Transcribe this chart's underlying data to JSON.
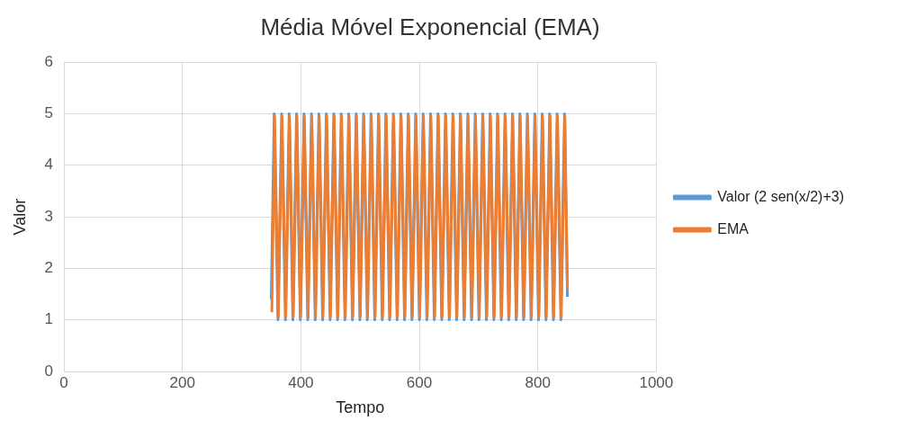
{
  "chart_data": {
    "type": "line",
    "title": "Média Móvel Exponencial (EMA)",
    "xlabel": "Tempo",
    "ylabel": "Valor",
    "xlim": [
      0,
      1000
    ],
    "xticks": [
      0,
      200,
      400,
      600,
      800,
      1000
    ],
    "ylim": [
      0,
      6
    ],
    "yticks": [
      0,
      1,
      2,
      3,
      4,
      5,
      6
    ],
    "grid": true,
    "legend": "right",
    "series": [
      {
        "name": "Valor (2 sen(x/2)+3)",
        "color": "#5b9bd5",
        "x": [
          350,
          355.0,
          361.3,
          367.6,
          373.9,
          380.2,
          386.5,
          392.7,
          399.0,
          405.3,
          411.6,
          417.9,
          424.2,
          430.4,
          436.7,
          443.0,
          449.3,
          455.6,
          461.9,
          468.1,
          474.4,
          480.7,
          487.0,
          493.3,
          499.6,
          505.8,
          512.1,
          518.4,
          524.7,
          531.0,
          537.3,
          543.5,
          549.8,
          556.1,
          562.4,
          568.7,
          575.0,
          581.2,
          587.5,
          593.8,
          600.1,
          606.4,
          612.7,
          618.9,
          625.2,
          631.5,
          637.8,
          644.1,
          650.4,
          656.6,
          662.9,
          669.2,
          675.5,
          681.8,
          688.1,
          694.3,
          700.6,
          706.9,
          713.2,
          719.5,
          725.8,
          732.0,
          738.3,
          744.6,
          750.9,
          757.2,
          763.5,
          769.7,
          776.0,
          782.3,
          788.6,
          794.9,
          801.2,
          807.4,
          813.7,
          820.0,
          826.3,
          832.6,
          838.9,
          845.1,
          850
        ],
        "values": [
          1.4,
          5,
          1,
          5,
          1,
          5,
          1,
          5,
          1,
          5,
          1,
          5,
          1,
          5,
          1,
          5,
          1,
          5,
          1,
          5,
          1,
          5,
          1,
          5,
          1,
          5,
          1,
          5,
          1,
          5,
          1,
          5,
          1,
          5,
          1,
          5,
          1,
          5,
          1,
          5,
          1,
          5,
          1,
          5,
          1,
          5,
          1,
          5,
          1,
          5,
          1,
          5,
          1,
          5,
          1,
          5,
          1,
          5,
          1,
          5,
          1,
          5,
          1,
          5,
          1,
          5,
          1,
          5,
          1,
          5,
          1,
          5,
          1,
          5,
          1,
          5,
          1,
          5,
          1,
          5,
          1.45
        ]
      },
      {
        "name": "EMA",
        "color": "#ed7d31",
        "x": [
          351,
          355.6,
          361.9,
          368.2,
          374.5,
          380.8,
          387.1,
          393.3,
          399.6,
          405.9,
          412.2,
          418.5,
          424.8,
          431.0,
          437.3,
          443.6,
          449.9,
          456.2,
          462.5,
          468.7,
          475.0,
          481.3,
          487.6,
          493.9,
          500.2,
          506.4,
          512.7,
          519.0,
          525.3,
          531.6,
          537.9,
          544.1,
          550.4,
          556.7,
          563.0,
          569.3,
          575.6,
          581.8,
          588.1,
          594.4,
          600.7,
          607.0,
          613.3,
          619.5,
          625.8,
          632.1,
          638.4,
          644.7,
          651.0,
          657.2,
          663.5,
          669.8,
          676.1,
          682.4,
          688.7,
          694.9,
          701.2,
          707.5,
          713.8,
          720.1,
          726.4,
          732.6,
          738.9,
          745.2,
          751.5,
          757.8,
          764.1,
          770.3,
          776.6,
          782.9,
          789.2,
          795.5,
          801.8,
          808.0,
          814.3,
          820.6,
          826.9,
          833.2,
          839.5,
          845.7,
          850
        ],
        "values": [
          1.15,
          4.95,
          1.05,
          4.95,
          1.05,
          4.95,
          1.05,
          4.95,
          1.05,
          4.95,
          1.05,
          4.95,
          1.05,
          4.95,
          1.05,
          4.95,
          1.05,
          4.95,
          1.05,
          4.95,
          1.05,
          4.95,
          1.05,
          4.95,
          1.05,
          4.95,
          1.05,
          4.95,
          1.05,
          4.95,
          1.05,
          4.95,
          1.05,
          4.95,
          1.05,
          4.95,
          1.05,
          4.95,
          1.05,
          4.95,
          1.05,
          4.95,
          1.05,
          4.95,
          1.05,
          4.95,
          1.05,
          4.95,
          1.05,
          4.95,
          1.05,
          4.95,
          1.05,
          4.95,
          1.05,
          4.95,
          1.05,
          4.95,
          1.05,
          4.95,
          1.05,
          4.95,
          1.05,
          4.95,
          1.05,
          4.95,
          1.05,
          4.95,
          1.05,
          4.95,
          1.05,
          4.95,
          1.05,
          4.95,
          1.05,
          4.95,
          1.05,
          4.95,
          1.05,
          4.95,
          1.6
        ]
      }
    ]
  }
}
